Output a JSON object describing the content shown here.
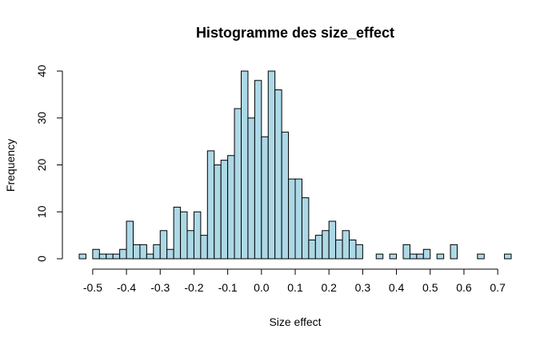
{
  "chart_data": {
    "type": "bar",
    "title": "Histogramme des size_effect",
    "xlabel": "Size effect",
    "ylabel": "Frequency",
    "bin_width": 0.02,
    "bin_starts": [
      -0.54,
      -0.52,
      -0.5,
      -0.48,
      -0.46,
      -0.44,
      -0.42,
      -0.4,
      -0.38,
      -0.36,
      -0.34,
      -0.32,
      -0.3,
      -0.28,
      -0.26,
      -0.24,
      -0.22,
      -0.2,
      -0.18,
      -0.16,
      -0.14,
      -0.12,
      -0.1,
      -0.08,
      -0.06,
      -0.04,
      -0.02,
      0.0,
      0.02,
      0.04,
      0.06,
      0.08,
      0.1,
      0.12,
      0.14,
      0.16,
      0.18,
      0.2,
      0.22,
      0.24,
      0.26,
      0.28,
      0.3,
      0.32,
      0.34,
      0.36,
      0.38,
      0.4,
      0.42,
      0.44,
      0.46,
      0.48,
      0.5,
      0.52,
      0.54,
      0.56,
      0.58,
      0.6,
      0.62,
      0.64,
      0.66,
      0.68,
      0.7,
      0.72
    ],
    "values": [
      1,
      0,
      2,
      1,
      1,
      1,
      2,
      8,
      3,
      3,
      1,
      3,
      6,
      2,
      11,
      10,
      6,
      10,
      5,
      23,
      20,
      21,
      22,
      32,
      40,
      30,
      38,
      26,
      40,
      36,
      27,
      17,
      17,
      13,
      4,
      5,
      6,
      8,
      4,
      6,
      4,
      3,
      0,
      0,
      1,
      0,
      1,
      0,
      3,
      1,
      1,
      2,
      0,
      1,
      0,
      3,
      0,
      0,
      0,
      1,
      0,
      0,
      0,
      1
    ],
    "xlim": [
      -0.54,
      0.74
    ],
    "ylim": [
      0,
      40
    ],
    "x_ticks": [
      -0.5,
      -0.4,
      -0.3,
      -0.2,
      -0.1,
      0.0,
      0.1,
      0.2,
      0.3,
      0.4,
      0.5,
      0.6,
      0.7
    ],
    "x_tick_labels": [
      "-0.5",
      "-0.4",
      "-0.3",
      "-0.2",
      "-0.1",
      "0.0",
      "0.1",
      "0.2",
      "0.3",
      "0.4",
      "0.5",
      "0.6",
      "0.7"
    ],
    "y_ticks": [
      0,
      10,
      20,
      30,
      40
    ],
    "y_tick_labels": [
      "0",
      "10",
      "20",
      "30",
      "40"
    ],
    "bar_color": "#add8e6",
    "edge_color": "#000000",
    "grid": false,
    "legend": "none"
  }
}
